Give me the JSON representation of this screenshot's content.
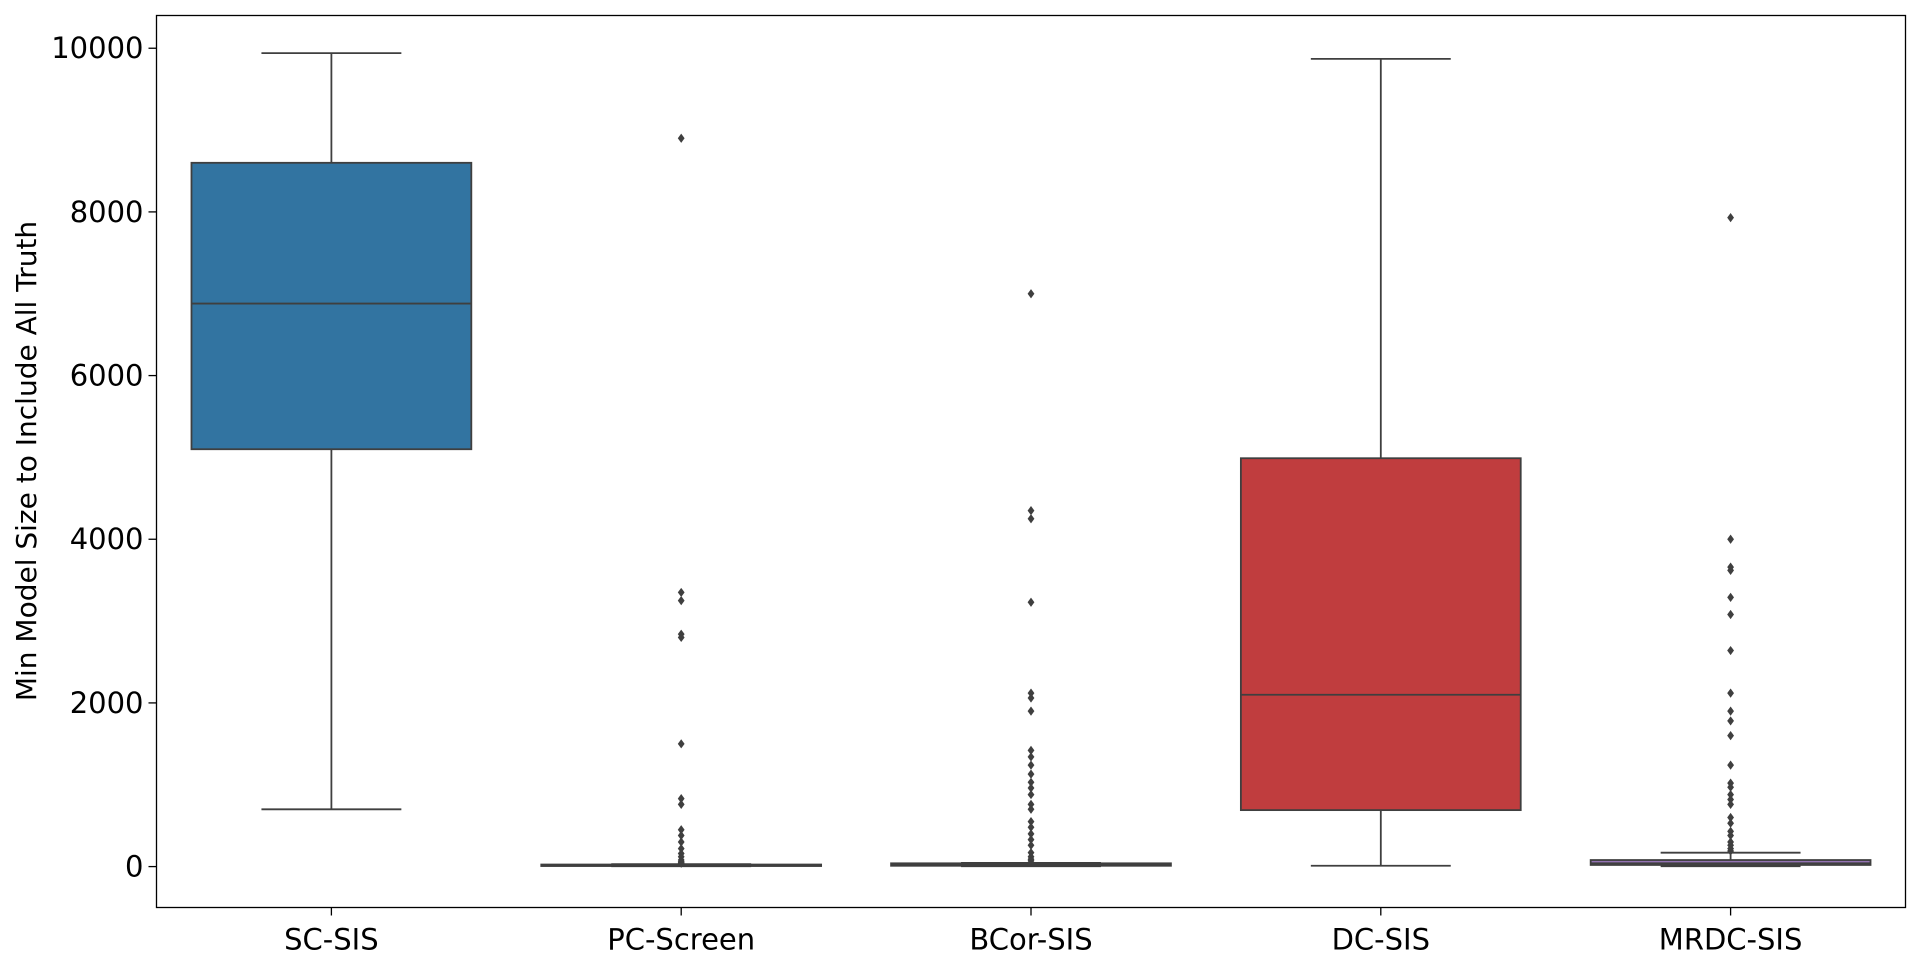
{
  "chart_data": {
    "type": "box",
    "title": "",
    "xlabel": "",
    "ylabel": "Min Model Size to Include All Truth",
    "ylim": [
      -500,
      10400
    ],
    "yticks": [
      0,
      2000,
      4000,
      6000,
      8000,
      10000
    ],
    "grid": false,
    "legend": "none",
    "categories": [
      "SC-SIS",
      "PC-Screen",
      "BCor-SIS",
      "DC-SIS",
      "MRDC-SIS"
    ],
    "boxes": [
      {
        "name": "SC-SIS",
        "color": "#3274a1",
        "whisker_low": 700,
        "q1": 5100,
        "median": 6880,
        "q3": 8600,
        "whisker_high": 9940,
        "outliers": []
      },
      {
        "name": "PC-Screen",
        "color": "#e1812c",
        "whisker_low": 5,
        "q1": 10,
        "median": 15,
        "q3": 25,
        "whisker_high": 30,
        "outliers": [
          8900,
          3350,
          3250,
          2840,
          2800,
          1500,
          830,
          760,
          450,
          380,
          300,
          220,
          160,
          120,
          80,
          60,
          50,
          40
        ]
      },
      {
        "name": "BCor-SIS",
        "color": "#3a923a",
        "whisker_low": 5,
        "q1": 10,
        "median": 20,
        "q3": 40,
        "whisker_high": 45,
        "outliers": [
          7000,
          4350,
          4250,
          3230,
          2120,
          2060,
          1900,
          1420,
          1340,
          1240,
          1130,
          1030,
          960,
          880,
          760,
          700,
          550,
          480,
          400,
          330,
          260,
          170,
          120,
          90,
          70
        ]
      },
      {
        "name": "DC-SIS",
        "color": "#c03d3e",
        "whisker_low": 10,
        "q1": 690,
        "median": 2100,
        "q3": 4990,
        "whisker_high": 9870,
        "outliers": []
      },
      {
        "name": "MRDC-SIS",
        "color": "#9372b2",
        "whisker_low": 5,
        "q1": 20,
        "median": 40,
        "q3": 80,
        "whisker_high": 170,
        "outliers": [
          7930,
          4000,
          3660,
          3620,
          3290,
          3080,
          2640,
          2120,
          1900,
          1780,
          1600,
          1240,
          1020,
          970,
          880,
          820,
          760,
          600,
          530,
          430,
          380,
          300,
          260,
          220,
          190
        ]
      }
    ]
  }
}
